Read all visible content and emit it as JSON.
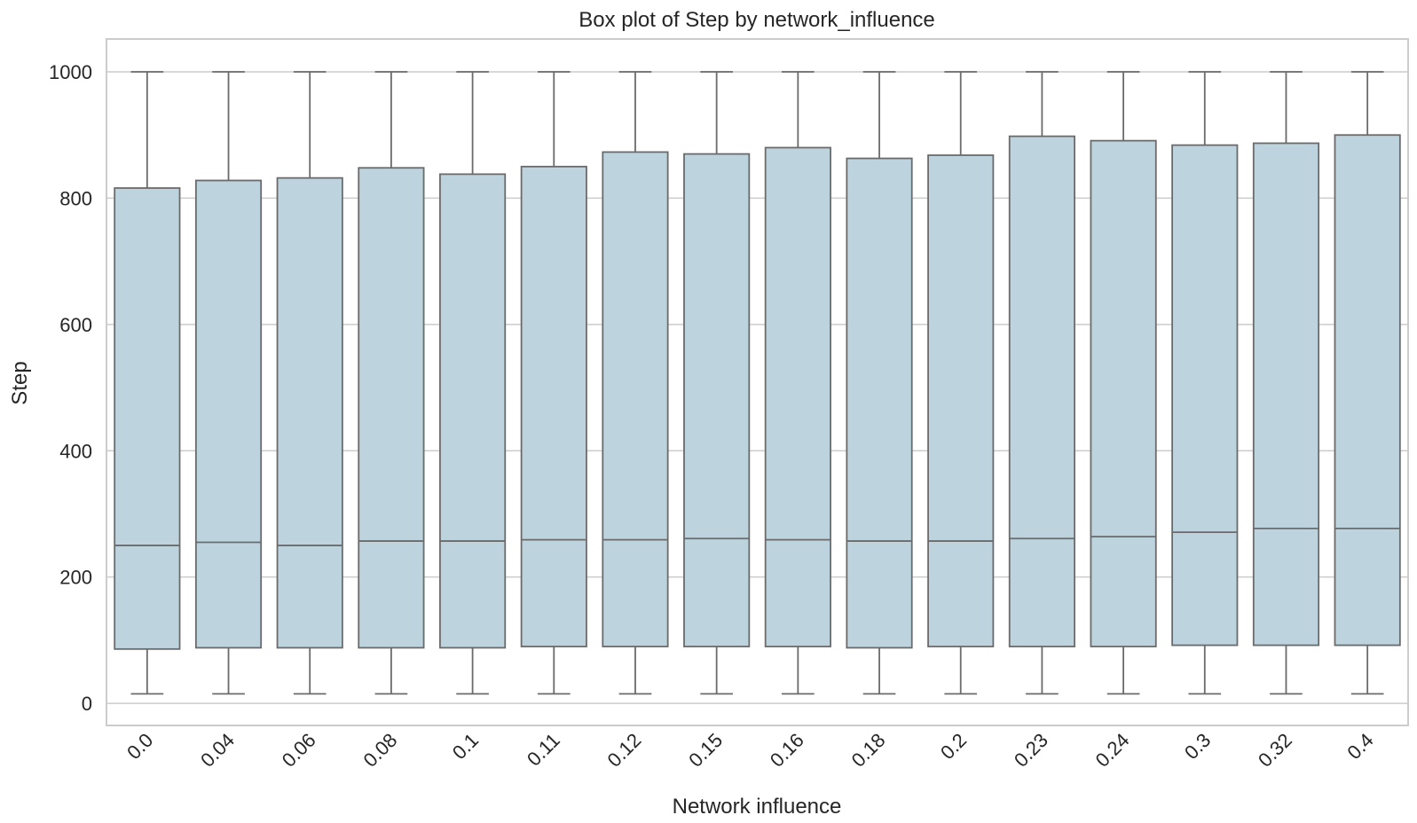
{
  "chart_data": {
    "type": "box",
    "title": "Box plot of Step by network_influence",
    "xlabel": "Network influence",
    "ylabel": "Step",
    "ylim": [
      -35,
      1052
    ],
    "yticks": [
      0,
      200,
      400,
      600,
      800,
      1000
    ],
    "grid": true,
    "colors": {
      "box_fill": "#bdd3de",
      "line": "#6b6b6b",
      "grid": "#cccccc",
      "frame": "#cccccc"
    },
    "categories": [
      "0.0",
      "0.04",
      "0.06",
      "0.08",
      "0.1",
      "0.11",
      "0.12",
      "0.15",
      "0.16",
      "0.18",
      "0.2",
      "0.23",
      "0.24",
      "0.3",
      "0.32",
      "0.4"
    ],
    "boxes": [
      {
        "category": "0.0",
        "whisker_low": 15,
        "q1": 86,
        "median": 250,
        "q3": 816,
        "whisker_high": 1000
      },
      {
        "category": "0.04",
        "whisker_low": 15,
        "q1": 88,
        "median": 255,
        "q3": 828,
        "whisker_high": 1000
      },
      {
        "category": "0.06",
        "whisker_low": 15,
        "q1": 88,
        "median": 250,
        "q3": 832,
        "whisker_high": 1000
      },
      {
        "category": "0.08",
        "whisker_low": 15,
        "q1": 88,
        "median": 257,
        "q3": 848,
        "whisker_high": 1000
      },
      {
        "category": "0.1",
        "whisker_low": 15,
        "q1": 88,
        "median": 257,
        "q3": 838,
        "whisker_high": 1000
      },
      {
        "category": "0.11",
        "whisker_low": 15,
        "q1": 90,
        "median": 259,
        "q3": 850,
        "whisker_high": 1000
      },
      {
        "category": "0.12",
        "whisker_low": 15,
        "q1": 90,
        "median": 259,
        "q3": 873,
        "whisker_high": 1000
      },
      {
        "category": "0.15",
        "whisker_low": 15,
        "q1": 90,
        "median": 261,
        "q3": 870,
        "whisker_high": 1000
      },
      {
        "category": "0.16",
        "whisker_low": 15,
        "q1": 90,
        "median": 259,
        "q3": 880,
        "whisker_high": 1000
      },
      {
        "category": "0.18",
        "whisker_low": 15,
        "q1": 88,
        "median": 257,
        "q3": 863,
        "whisker_high": 1000
      },
      {
        "category": "0.2",
        "whisker_low": 15,
        "q1": 90,
        "median": 257,
        "q3": 868,
        "whisker_high": 1000
      },
      {
        "category": "0.23",
        "whisker_low": 15,
        "q1": 90,
        "median": 261,
        "q3": 898,
        "whisker_high": 1000
      },
      {
        "category": "0.24",
        "whisker_low": 15,
        "q1": 90,
        "median": 264,
        "q3": 891,
        "whisker_high": 1000
      },
      {
        "category": "0.3",
        "whisker_low": 15,
        "q1": 92,
        "median": 271,
        "q3": 884,
        "whisker_high": 1000
      },
      {
        "category": "0.32",
        "whisker_low": 15,
        "q1": 92,
        "median": 277,
        "q3": 887,
        "whisker_high": 1000
      },
      {
        "category": "0.4",
        "whisker_low": 15,
        "q1": 92,
        "median": 277,
        "q3": 900,
        "whisker_high": 1000
      }
    ]
  }
}
